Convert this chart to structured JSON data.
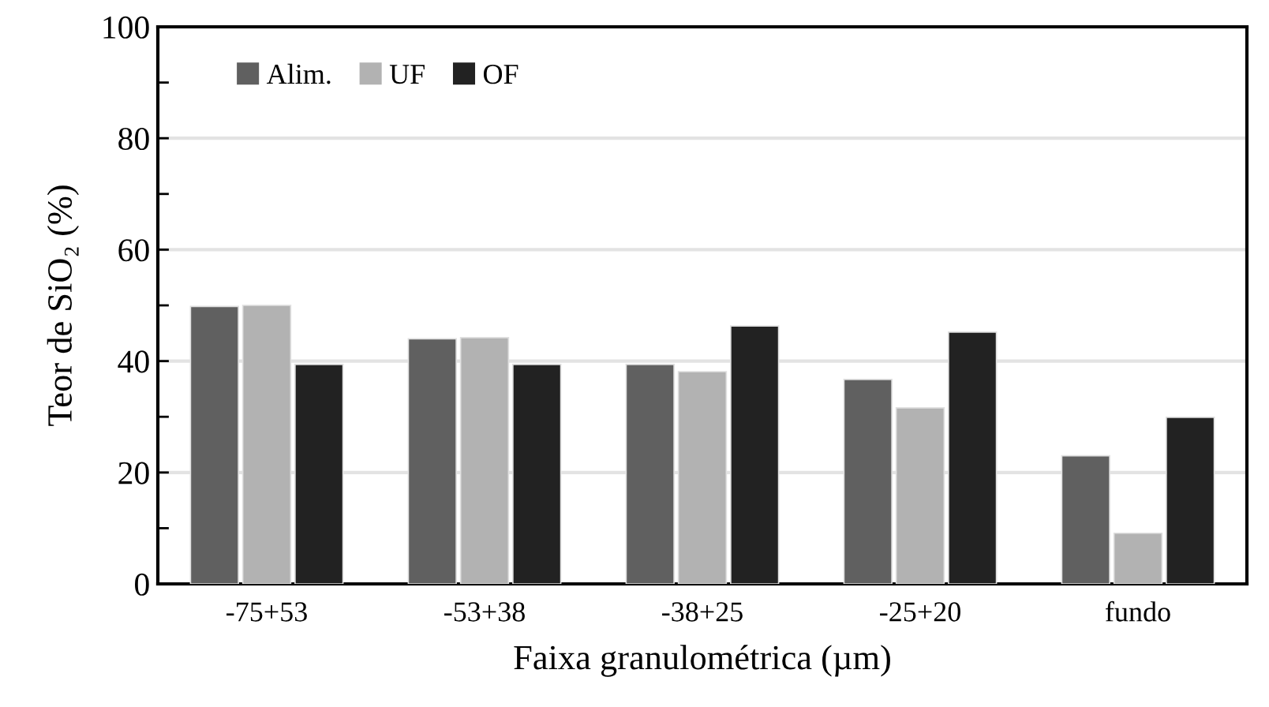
{
  "chart_data": {
    "type": "bar",
    "xlabel": "Faixa granulométrica (µm)",
    "ylabel": "Teor de SiO₂ (%)",
    "categories": [
      "-75+53",
      "-53+38",
      "-38+25",
      "-25+20",
      "fundo"
    ],
    "series": [
      {
        "name": "Alim.",
        "color": "#606060",
        "values": [
          49.8,
          44.0,
          39.4,
          36.7,
          23.0
        ]
      },
      {
        "name": "UF",
        "color": "#b2b2b2",
        "values": [
          50.0,
          44.2,
          38.1,
          31.6,
          9.1
        ]
      },
      {
        "name": "OF",
        "color": "#222222",
        "values": [
          39.4,
          39.4,
          46.3,
          45.2,
          29.9
        ]
      }
    ],
    "ylim": [
      0,
      100
    ],
    "yticks": [
      0,
      20,
      40,
      60,
      80,
      100
    ],
    "grid": "y",
    "legend": "top left"
  }
}
